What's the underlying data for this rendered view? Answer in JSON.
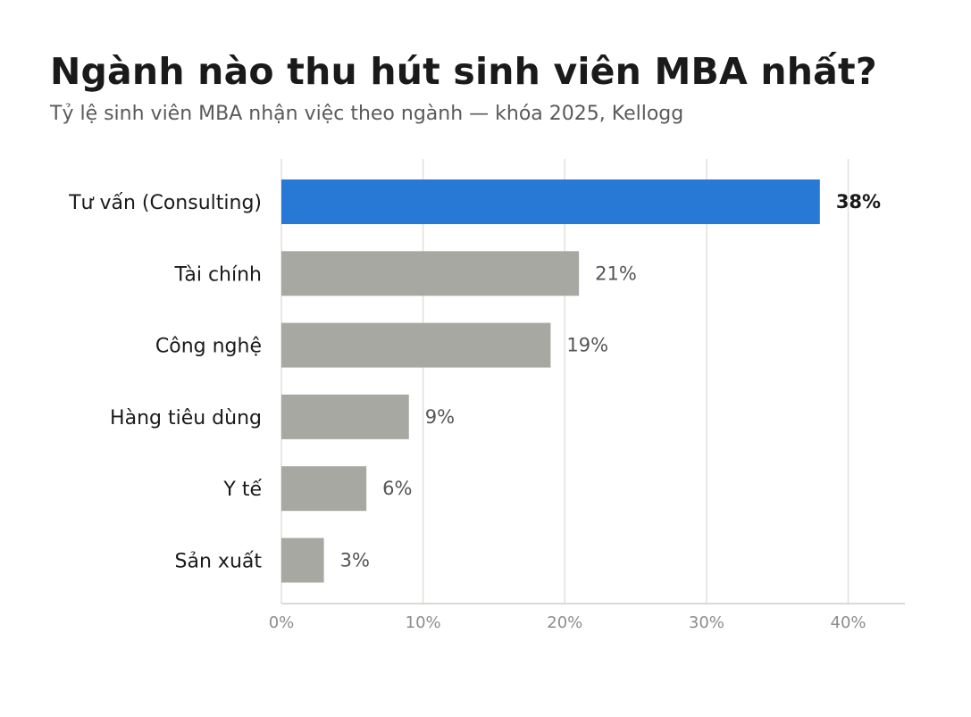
{
  "chart_data": {
    "type": "bar",
    "orientation": "horizontal",
    "title": "Ngành nào thu hút sinh viên MBA nhất?",
    "subtitle": "Tỷ lệ sinh viên MBA nhận việc theo ngành — khóa 2025, Kellogg",
    "categories": [
      "Tư vấn (Consulting)",
      "Tài chính",
      "Công nghệ",
      "Hàng tiêu dùng",
      "Y tế",
      "Sản xuất"
    ],
    "values": [
      38,
      21,
      19,
      9,
      6,
      3
    ],
    "value_labels": [
      "38%",
      "21%",
      "19%",
      "9%",
      "6%",
      "3%"
    ],
    "highlight_index": 0,
    "xlim": [
      0,
      44
    ],
    "xticks": [
      0,
      10,
      20,
      30,
      40
    ],
    "xtick_labels": [
      "0%",
      "10%",
      "20%",
      "30%",
      "40%"
    ],
    "grid": "vertical",
    "legend": "none",
    "colors": {
      "highlight": "#2878d6",
      "default": "#a8a8a3",
      "grid": "#e0e0dc",
      "axis": "#cfcfc8"
    }
  }
}
